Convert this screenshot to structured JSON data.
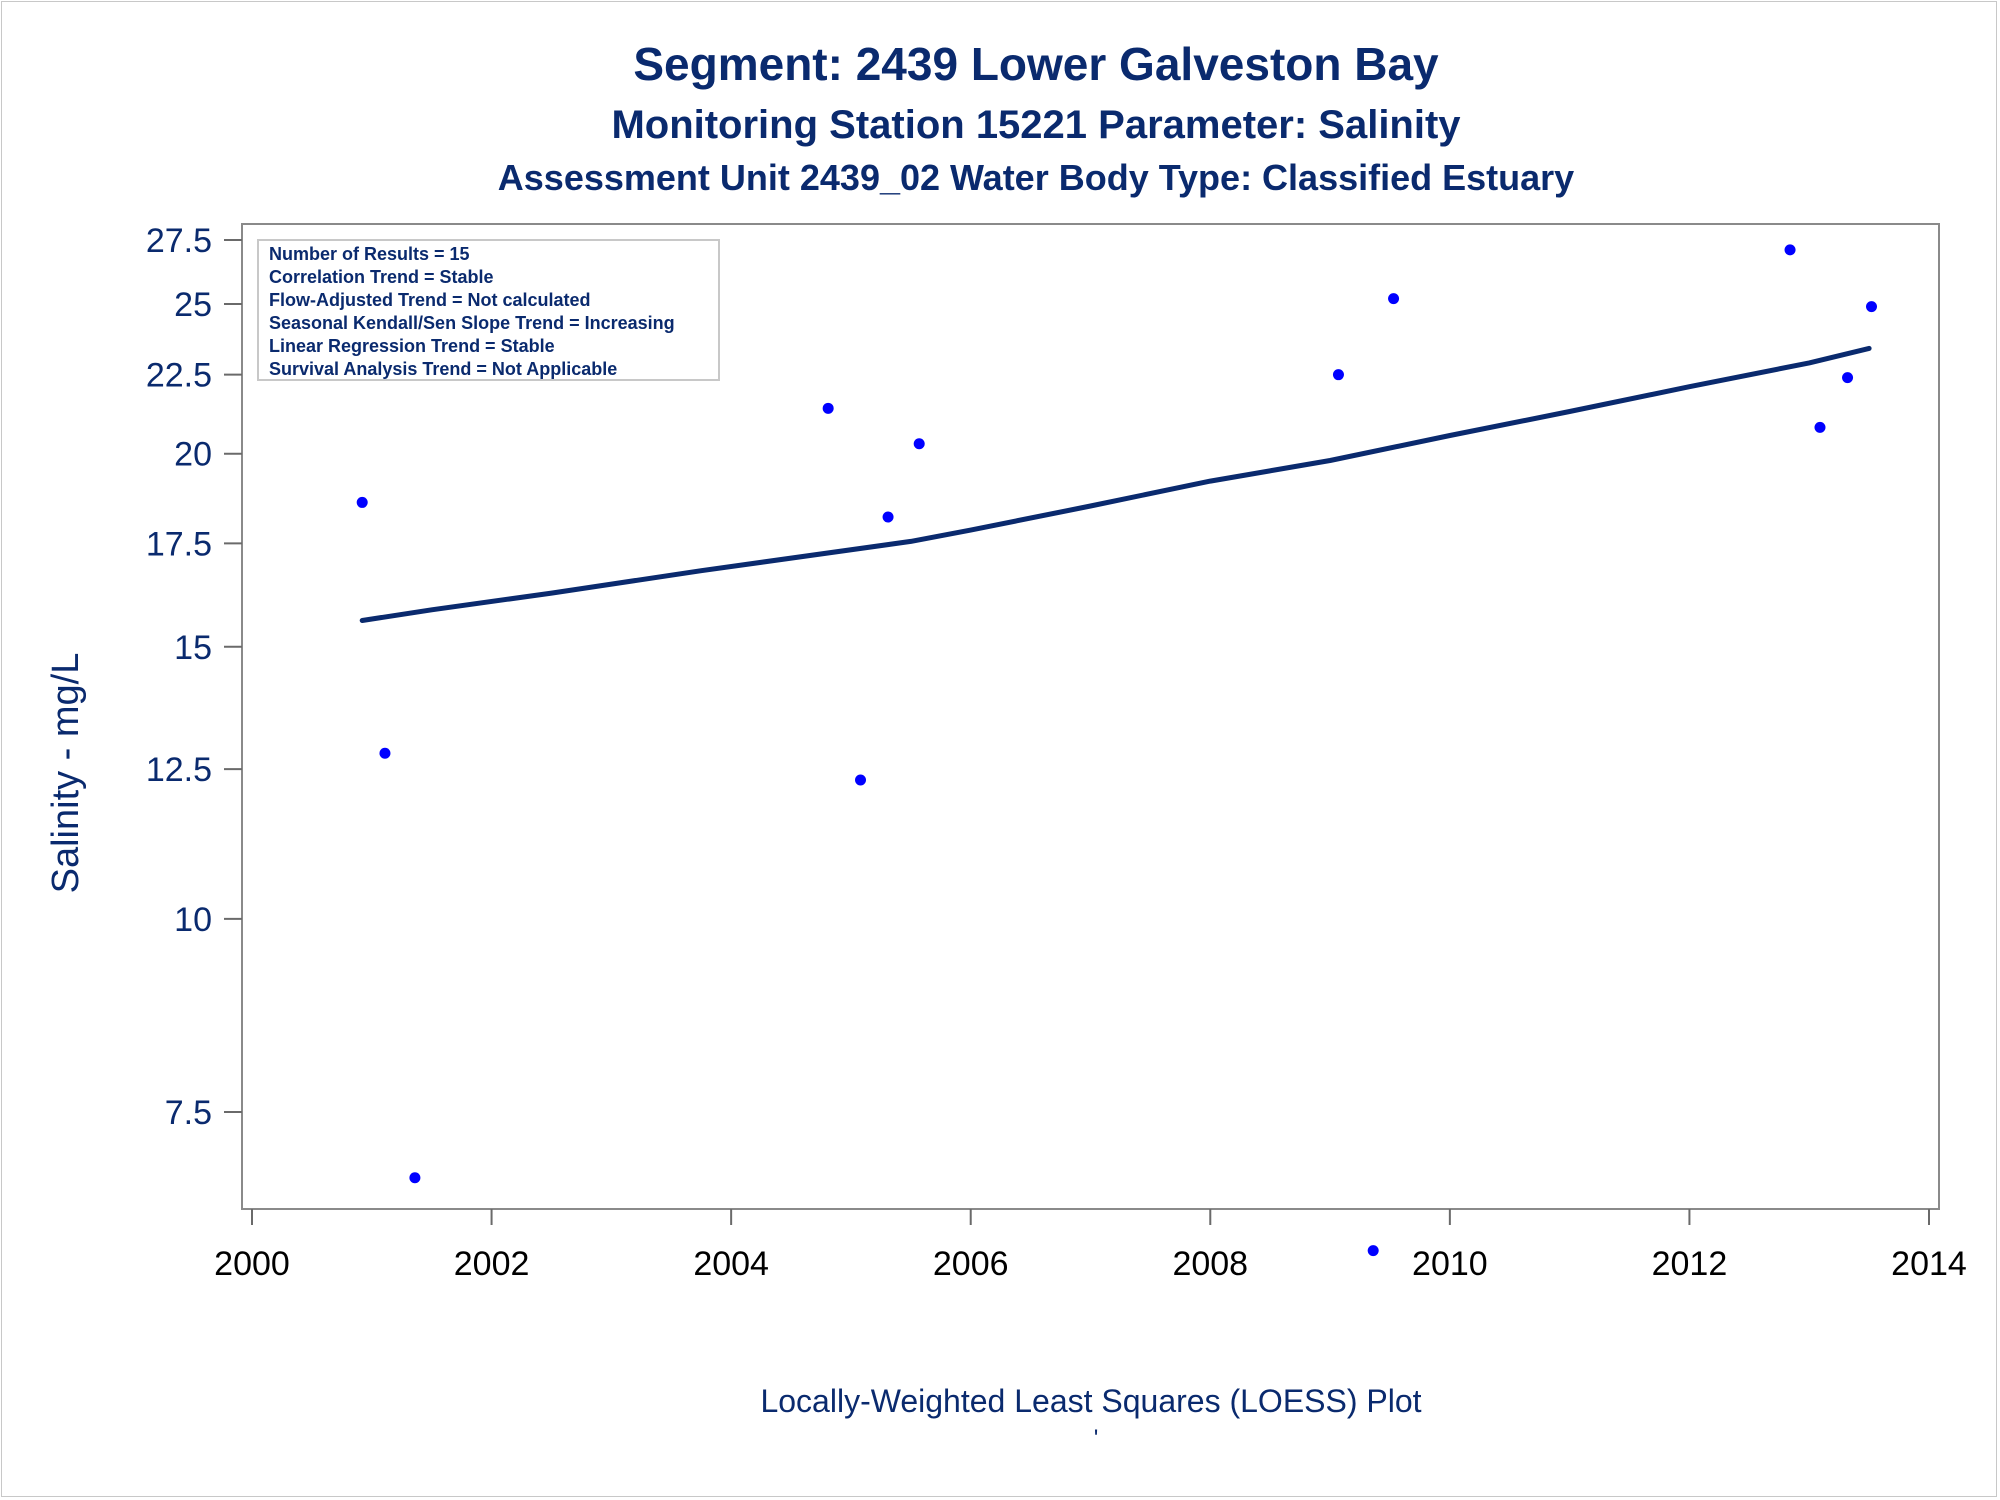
{
  "chart_data": {
    "type": "scatter",
    "title": "Segment: 2439  Lower Galveston Bay",
    "subtitle": "Monitoring Station 15221 Parameter: Salinity",
    "subtitle2": "Assessment Unit 2439_02   Water Body Type: Classified Estuary",
    "ylabel": "Salinity - mg/L",
    "footnote": "Locally-Weighted Least Squares (LOESS) Plot",
    "footnote_mark": "'",
    "xlim": [
      2000,
      2014
    ],
    "ylim": [
      6.0,
      27.5
    ],
    "y_scale": "log",
    "grid": false,
    "xticks": [
      "2000",
      "2002",
      "2004",
      "2006",
      "2008",
      "2010",
      "2012",
      "2014"
    ],
    "yticks": [
      "27.5",
      "25",
      "22.5",
      "20",
      "17.5",
      "15",
      "12.5",
      "10",
      "7.5"
    ],
    "legend_box": {
      "position": "top-left",
      "lines": [
        "Number of Results = 15",
        "Correlation Trend = Stable",
        "Flow-Adjusted Trend = Not calculated",
        "Seasonal Kendall/Sen Slope Trend = Increasing",
        "Linear Regression Trend = Stable",
        "Survival Analysis Trend = Not Applicable"
      ]
    },
    "series": [
      {
        "kind": "points",
        "color": "#0000ff",
        "x": [
          2000.92,
          2001.11,
          2001.36,
          2001.64,
          2004.81,
          2005.08,
          2005.31,
          2005.57,
          2009.07,
          2009.36,
          2009.53,
          2012.84,
          2013.09,
          2013.32,
          2013.52
        ],
        "y": [
          18.6,
          12.8,
          6.8,
          23.6,
          21.4,
          12.3,
          18.2,
          20.3,
          22.5,
          6.1,
          25.2,
          27.1,
          20.8,
          22.4,
          24.9
        ]
      },
      {
        "kind": "loess-line",
        "color": "#0a2a6e",
        "x": [
          2000.92,
          2001.5,
          2002.5,
          2003.75,
          2005.5,
          2006.0,
          2007.0,
          2008.0,
          2009.0,
          2010.0,
          2011.0,
          2012.0,
          2013.0,
          2013.5
        ],
        "y": [
          15.6,
          15.85,
          16.25,
          16.8,
          17.55,
          17.85,
          18.5,
          19.2,
          19.8,
          20.55,
          21.3,
          22.1,
          22.9,
          23.4
        ]
      }
    ]
  }
}
